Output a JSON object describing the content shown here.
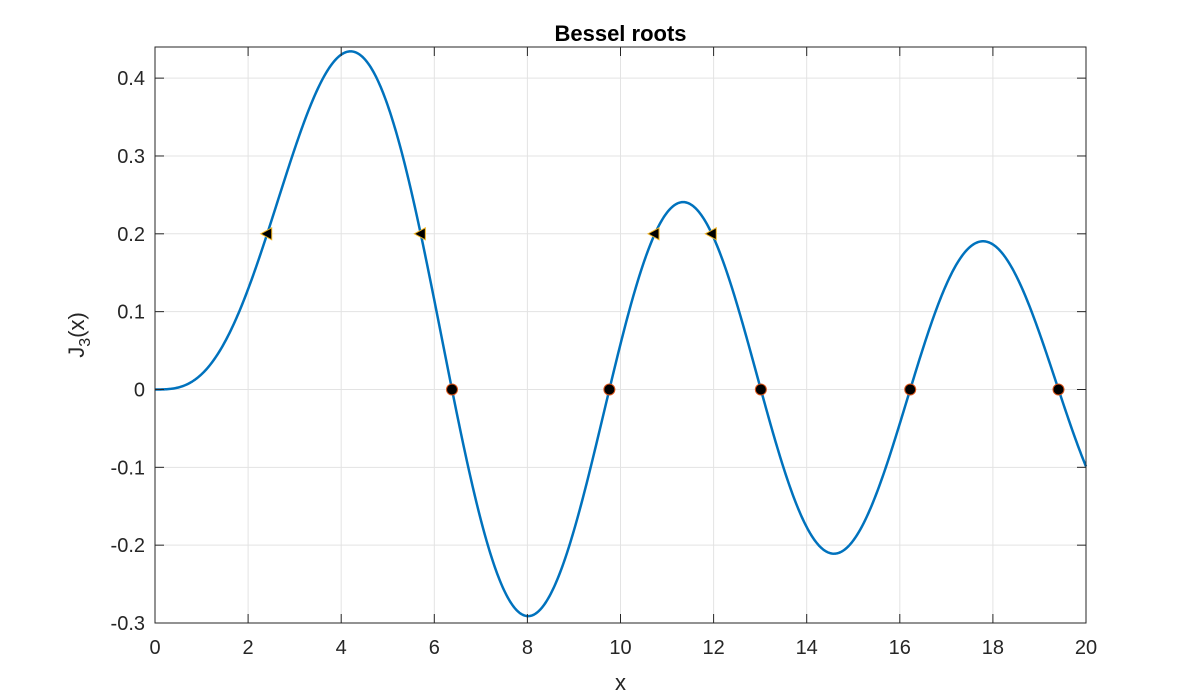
{
  "chart_data": {
    "type": "line",
    "title": "Bessel roots",
    "xlabel": "x",
    "ylabel_base": "J",
    "ylabel_sub": "3",
    "ylabel_tail": "(x)",
    "xlim": [
      0,
      20
    ],
    "ylim": [
      -0.3,
      0.44
    ],
    "xticks": [
      0,
      2,
      4,
      6,
      8,
      10,
      12,
      14,
      16,
      18,
      20
    ],
    "xtick_labels": [
      "0",
      "2",
      "4",
      "6",
      "8",
      "10",
      "12",
      "14",
      "16",
      "18",
      "20"
    ],
    "yticks": [
      -0.3,
      -0.2,
      -0.1,
      0,
      0.1,
      0.2,
      0.3,
      0.4
    ],
    "ytick_labels": [
      "-0.3",
      "-0.2",
      "-0.1",
      "0",
      "0.1",
      "0.2",
      "0.3",
      "0.4"
    ],
    "grid": true,
    "series": [
      {
        "function": "besselj",
        "order": 3,
        "x_range": [
          0,
          20
        ],
        "color": "#0072BD",
        "line_width": 2.5
      }
    ],
    "roots": {
      "marker": "circle",
      "fill": "#000000",
      "edge": "#D95319",
      "x": [
        6.3802,
        9.761,
        13.0152,
        16.2235,
        19.4094
      ],
      "y": [
        0,
        0,
        0,
        0,
        0
      ]
    },
    "level_crossings": {
      "marker": "triangle-left",
      "fill": "#000000",
      "edge": "#EDB120",
      "x": [
        2.4,
        5.7,
        10.72,
        11.95
      ],
      "y": [
        0.2,
        0.2,
        0.2,
        0.2
      ]
    }
  }
}
